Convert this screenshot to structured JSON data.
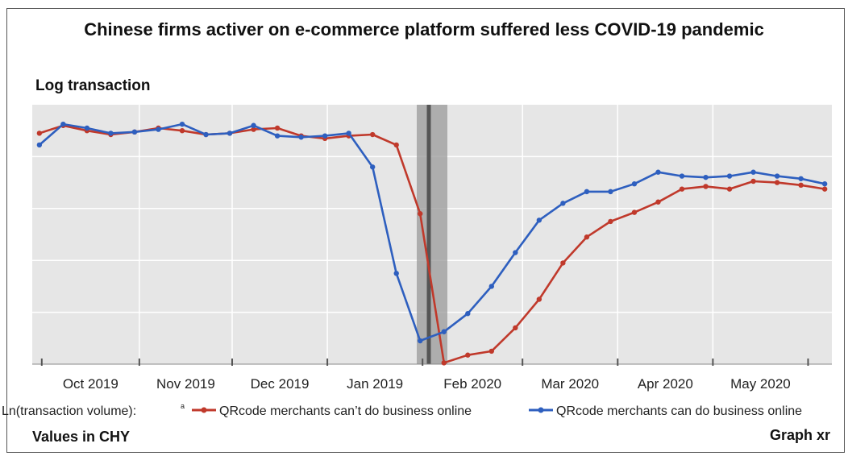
{
  "header": {
    "title": "Chinese firms activer on e-commerce platform suffered less COVID-19 pandemic",
    "y_axis_title": "Log transaction"
  },
  "footer": {
    "left": "Values in CHY",
    "right": "Graph xr"
  },
  "chart_data": {
    "type": "line",
    "title": "Chinese firms activer on e-commerce platform suffered less COVID-19 pandemic",
    "ylabel": "Log transaction",
    "tick_labels": [
      "Oct 2019",
      "Nov 2019",
      "Dec 2019",
      "Jan 2019",
      "Feb 2020",
      "Mar 2020",
      "Apr 2020",
      "May 2020"
    ],
    "grid": true,
    "legend": {
      "placement": "bottom",
      "prefix": "Ln(transaction volume):",
      "prefix_sup": "a"
    },
    "x": [
      0,
      1,
      2,
      3,
      4,
      5,
      6,
      7,
      8,
      9,
      10,
      11,
      12,
      13,
      14,
      15,
      16,
      17,
      18,
      19,
      20,
      21,
      22,
      23,
      24,
      25,
      26,
      27,
      28,
      29,
      30,
      31,
      32,
      33
    ],
    "xlim": [
      -0.3,
      33.3
    ],
    "ylim": [
      0,
      10
    ],
    "event_marker_x": 16.5,
    "series": [
      {
        "name": "QRcode merchants can’t do business online",
        "color": "#c0392b",
        "values": [
          8.9,
          9.2,
          9.0,
          8.85,
          8.95,
          9.1,
          9.0,
          8.85,
          8.9,
          9.05,
          9.1,
          8.8,
          8.7,
          8.8,
          8.85,
          8.45,
          5.8,
          0.05,
          0.35,
          0.5,
          1.4,
          2.5,
          3.9,
          4.9,
          5.5,
          5.85,
          6.25,
          6.75,
          6.85,
          6.75,
          7.05,
          7.0,
          6.9,
          6.75
        ]
      },
      {
        "name": "QRcode merchants can do business online",
        "color": "#2e5fbf",
        "values": [
          8.45,
          9.25,
          9.1,
          8.9,
          8.95,
          9.05,
          9.25,
          8.85,
          8.9,
          9.2,
          8.8,
          8.75,
          8.8,
          8.9,
          7.6,
          3.5,
          0.9,
          1.25,
          1.95,
          3.0,
          4.3,
          5.55,
          6.2,
          6.65,
          6.65,
          6.95,
          7.4,
          7.25,
          7.2,
          7.25,
          7.4,
          7.25,
          7.15,
          6.95
        ]
      }
    ]
  }
}
